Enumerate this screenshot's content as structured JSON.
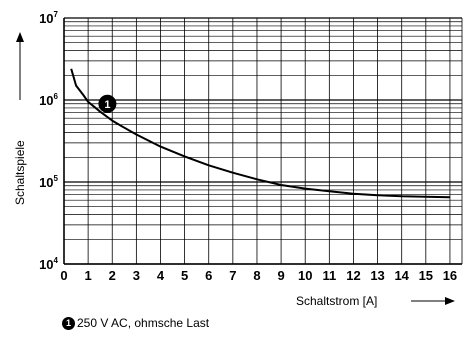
{
  "chart_data": {
    "type": "line",
    "xlabel": "Schaltstrom [A]",
    "ylabel": "Schaltspiele",
    "x_ticks": [
      "0",
      "1",
      "2",
      "3",
      "4",
      "5",
      "6",
      "7",
      "8",
      "9",
      "10",
      "11",
      "12",
      "13",
      "14",
      "15",
      "16"
    ],
    "xlim": [
      0,
      16.5
    ],
    "ylim": [
      10000,
      10000000
    ],
    "y_scale": "log",
    "y_ticks": [
      {
        "base": "10",
        "exp": "4"
      },
      {
        "base": "10",
        "exp": "5"
      },
      {
        "base": "10",
        "exp": "6"
      },
      {
        "base": "10",
        "exp": "7"
      }
    ],
    "grid": true,
    "series": [
      {
        "marker_label": "1",
        "x": [
          0.3,
          0.5,
          0.8,
          1,
          1.5,
          2,
          2.5,
          3,
          4,
          5,
          6,
          7,
          8,
          9,
          10,
          11,
          12,
          13,
          14,
          15,
          16
        ],
        "y": [
          2400000,
          1500000,
          1150000,
          950000,
          720000,
          560000,
          460000,
          380000,
          270000,
          205000,
          160000,
          130000,
          108000,
          92000,
          83000,
          77000,
          72000,
          69000,
          67000,
          66000,
          65000
        ]
      }
    ]
  },
  "legend": {
    "marker": "1",
    "text": "250 V AC, ohmsche Last"
  }
}
